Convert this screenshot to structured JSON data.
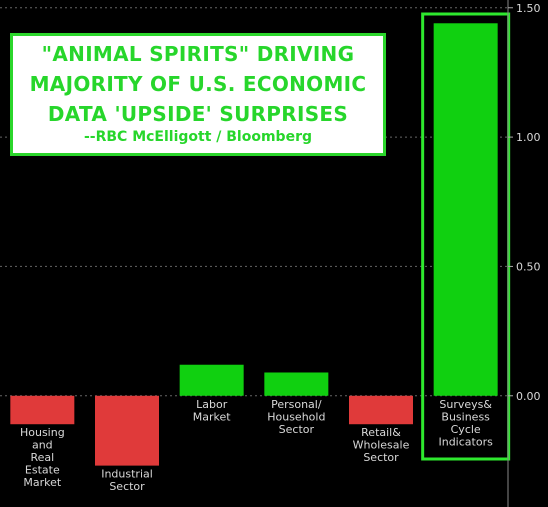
{
  "title": {
    "line1": "\"ANIMAL SPIRITS\" DRIVING",
    "line2": "MAJORITY OF U.S. ECONOMIC",
    "line3": "DATA 'UPSIDE' SURPRISES",
    "source": "--RBC McElligott / Bloomberg"
  },
  "colors": {
    "positive": "#10d010",
    "negative": "#e03a3a",
    "highlight_border": "#2ee82e",
    "grid": "#666666",
    "text": "#d8d8d8",
    "title_text": "#27d62b"
  },
  "chart_data": {
    "type": "bar",
    "categories": [
      [
        "Housing",
        "and",
        "Real",
        "Estate",
        "Market"
      ],
      [
        "Industrial",
        "Sector"
      ],
      [
        "Labor",
        "Market"
      ],
      [
        "Personal/",
        "Household",
        "Sector"
      ],
      [
        "Retail&",
        "Wholesale",
        "Sector"
      ],
      [
        "Surveys&",
        "Business",
        "Cycle",
        "Indicators"
      ]
    ],
    "values": [
      -0.11,
      -0.27,
      0.12,
      0.09,
      -0.11,
      1.44
    ],
    "ylim": [
      -0.43,
      1.53
    ],
    "yticks": [
      "1.50",
      "1.00",
      "0.50",
      "0.00"
    ],
    "ytick_values": [
      1.5,
      1.0,
      0.5,
      0.0
    ],
    "y_axis_position": "right",
    "grid": true,
    "highlighted_category_index": 5
  }
}
